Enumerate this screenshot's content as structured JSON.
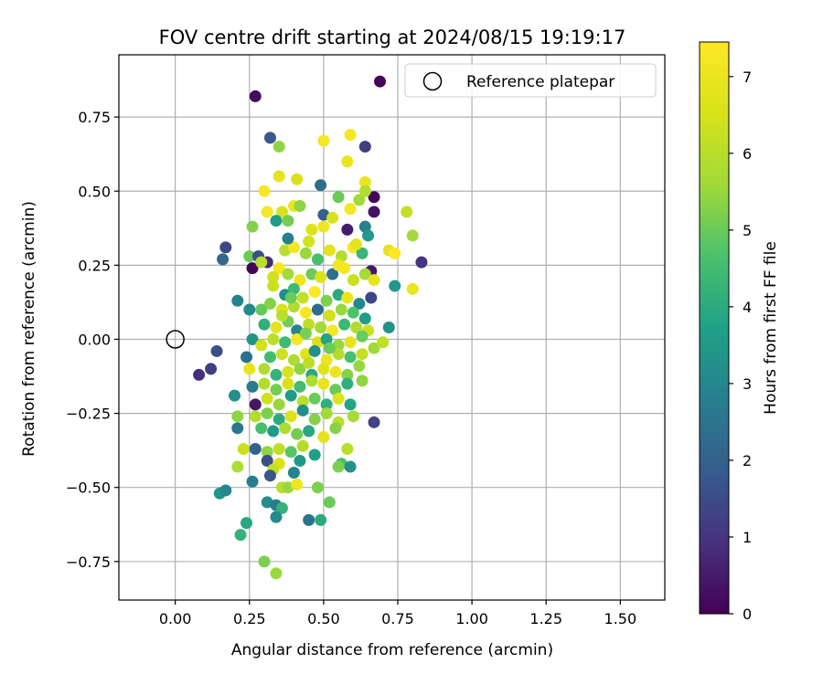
{
  "chart_data": {
    "type": "scatter",
    "title": "FOV centre drift starting at 2024/08/15 19:19:17",
    "xlabel": "Angular distance from reference (arcmin)",
    "ylabel": "Rotation from reference (arcmin)",
    "xlim": [
      -0.19,
      1.65
    ],
    "ylim": [
      -0.88,
      0.96
    ],
    "xticks": [
      0.0,
      0.25,
      0.5,
      0.75,
      1.0,
      1.25,
      1.5
    ],
    "xtick_labels": [
      "0.00",
      "0.25",
      "0.50",
      "0.75",
      "1.00",
      "1.25",
      "1.50"
    ],
    "yticks": [
      -0.75,
      -0.5,
      -0.25,
      0.0,
      0.25,
      0.5,
      0.75
    ],
    "ytick_labels": [
      "−0.75",
      "−0.50",
      "−0.25",
      "0.00",
      "0.25",
      "0.50",
      "0.75"
    ],
    "grid": true,
    "legend_position": "top-right",
    "reference": {
      "label": "Reference platepar",
      "x": 0.0,
      "y": 0.0
    },
    "colorbar": {
      "label": "Hours from first FF file",
      "range": [
        0,
        7.45
      ],
      "ticks": [
        0,
        1,
        2,
        3,
        4,
        5,
        6,
        7
      ],
      "tick_labels": [
        "0",
        "1",
        "2",
        "3",
        "4",
        "5",
        "6",
        "7"
      ],
      "colormap": "viridis"
    },
    "points": [
      [
        0.27,
        0.82,
        0.2
      ],
      [
        0.69,
        0.87,
        0.1
      ],
      [
        0.32,
        0.68,
        1.8
      ],
      [
        0.35,
        0.65,
        5.4
      ],
      [
        0.64,
        0.65,
        1.2
      ],
      [
        0.5,
        0.67,
        7.2
      ],
      [
        0.59,
        0.69,
        7.3
      ],
      [
        0.58,
        0.6,
        7.0
      ],
      [
        0.35,
        0.55,
        6.9
      ],
      [
        0.41,
        0.54,
        6.6
      ],
      [
        0.49,
        0.52,
        2.3
      ],
      [
        0.64,
        0.53,
        7.0
      ],
      [
        0.3,
        0.5,
        7.3
      ],
      [
        0.55,
        0.48,
        5.0
      ],
      [
        0.62,
        0.47,
        5.6
      ],
      [
        0.67,
        0.48,
        0.1
      ],
      [
        0.64,
        0.5,
        5.9
      ],
      [
        0.31,
        0.43,
        7.2
      ],
      [
        0.36,
        0.43,
        6.6
      ],
      [
        0.4,
        0.45,
        7.0
      ],
      [
        0.42,
        0.45,
        5.4
      ],
      [
        0.5,
        0.42,
        2.0
      ],
      [
        0.53,
        0.41,
        6.5
      ],
      [
        0.59,
        0.44,
        7.2
      ],
      [
        0.67,
        0.43,
        0.3
      ],
      [
        0.78,
        0.43,
        6.2
      ],
      [
        0.26,
        0.38,
        5.3
      ],
      [
        0.34,
        0.4,
        3.6
      ],
      [
        0.38,
        0.4,
        5.1
      ],
      [
        0.46,
        0.37,
        6.7
      ],
      [
        0.5,
        0.38,
        7.1
      ],
      [
        0.58,
        0.37,
        0.5
      ],
      [
        0.64,
        0.38,
        2.8
      ],
      [
        0.65,
        0.35,
        3.5
      ],
      [
        0.8,
        0.35,
        5.6
      ],
      [
        0.17,
        0.31,
        1.4
      ],
      [
        0.25,
        0.28,
        5.0
      ],
      [
        0.28,
        0.28,
        1.6
      ],
      [
        0.31,
        0.26,
        0.8
      ],
      [
        0.35,
        0.24,
        7.3
      ],
      [
        0.37,
        0.3,
        6.0
      ],
      [
        0.4,
        0.31,
        7.2
      ],
      [
        0.44,
        0.29,
        5.5
      ],
      [
        0.48,
        0.27,
        4.6
      ],
      [
        0.52,
        0.3,
        6.8
      ],
      [
        0.56,
        0.28,
        5.9
      ],
      [
        0.6,
        0.31,
        7.4
      ],
      [
        0.63,
        0.29,
        4.3
      ],
      [
        0.66,
        0.23,
        0.4
      ],
      [
        0.72,
        0.3,
        6.9
      ],
      [
        0.74,
        0.29,
        7.4
      ],
      [
        0.83,
        0.26,
        1.0
      ],
      [
        0.16,
        0.27,
        2.2
      ],
      [
        0.26,
        0.24,
        0.1
      ],
      [
        0.29,
        0.26,
        6.0
      ],
      [
        0.33,
        0.21,
        6.4
      ],
      [
        0.38,
        0.22,
        5.6
      ],
      [
        0.42,
        0.2,
        7.1
      ],
      [
        0.46,
        0.22,
        5.0
      ],
      [
        0.49,
        0.21,
        6.6
      ],
      [
        0.53,
        0.22,
        2.4
      ],
      [
        0.57,
        0.24,
        7.3
      ],
      [
        0.6,
        0.2,
        6.3
      ],
      [
        0.64,
        0.22,
        5.7
      ],
      [
        0.67,
        0.2,
        6.9
      ],
      [
        0.74,
        0.18,
        3.5
      ],
      [
        0.8,
        0.17,
        7.0
      ],
      [
        0.33,
        0.18,
        6.3
      ],
      [
        0.37,
        0.15,
        3.2
      ],
      [
        0.4,
        0.17,
        4.4
      ],
      [
        0.43,
        0.14,
        6.2
      ],
      [
        0.47,
        0.16,
        7.4
      ],
      [
        0.51,
        0.13,
        5.2
      ],
      [
        0.55,
        0.15,
        4.0
      ],
      [
        0.58,
        0.14,
        7.0
      ],
      [
        0.62,
        0.12,
        3.0
      ],
      [
        0.66,
        0.14,
        1.4
      ],
      [
        0.21,
        0.13,
        2.9
      ],
      [
        0.25,
        0.1,
        3.1
      ],
      [
        0.29,
        0.1,
        4.9
      ],
      [
        0.32,
        0.12,
        5.3
      ],
      [
        0.36,
        0.1,
        6.6
      ],
      [
        0.4,
        0.11,
        5.9
      ],
      [
        0.44,
        0.09,
        7.3
      ],
      [
        0.48,
        0.1,
        2.2
      ],
      [
        0.52,
        0.08,
        6.4
      ],
      [
        0.56,
        0.1,
        5.5
      ],
      [
        0.6,
        0.09,
        4.7
      ],
      [
        0.64,
        0.07,
        3.6
      ],
      [
        0.3,
        0.05,
        4.1
      ],
      [
        0.34,
        0.04,
        6.8
      ],
      [
        0.38,
        0.06,
        5.1
      ],
      [
        0.41,
        0.03,
        3.0
      ],
      [
        0.45,
        0.05,
        6.1
      ],
      [
        0.49,
        0.04,
        5.6
      ],
      [
        0.53,
        0.03,
        7.3
      ],
      [
        0.57,
        0.05,
        4.4
      ],
      [
        0.61,
        0.04,
        5.9
      ],
      [
        0.65,
        0.03,
        6.3
      ],
      [
        0.72,
        0.04,
        3.3
      ],
      [
        0.26,
        0.0,
        3.4
      ],
      [
        0.29,
        -0.02,
        6.4
      ],
      [
        0.33,
        0.0,
        6.0
      ],
      [
        0.37,
        -0.01,
        4.4
      ],
      [
        0.41,
        0.0,
        7.2
      ],
      [
        0.44,
        0.02,
        5.2
      ],
      [
        0.48,
        -0.01,
        6.6
      ],
      [
        0.51,
        0.0,
        3.8
      ],
      [
        0.55,
        -0.02,
        5.5
      ],
      [
        0.59,
        -0.01,
        6.9
      ],
      [
        0.63,
        0.01,
        5.0
      ],
      [
        0.67,
        -0.03,
        5.6
      ],
      [
        0.7,
        -0.01,
        6.1
      ],
      [
        0.14,
        -0.04,
        1.6
      ],
      [
        0.24,
        -0.06,
        2.4
      ],
      [
        0.32,
        -0.06,
        4.5
      ],
      [
        0.36,
        -0.05,
        6.3
      ],
      [
        0.4,
        -0.07,
        5.8
      ],
      [
        0.44,
        -0.05,
        6.7
      ],
      [
        0.47,
        -0.04,
        3.3
      ],
      [
        0.51,
        -0.07,
        7.0
      ],
      [
        0.55,
        -0.05,
        5.9
      ],
      [
        0.59,
        -0.06,
        4.6
      ],
      [
        0.63,
        -0.05,
        6.2
      ],
      [
        0.08,
        -0.12,
        0.9
      ],
      [
        0.12,
        -0.1,
        1.2
      ],
      [
        0.25,
        -0.1,
        6.9
      ],
      [
        0.3,
        -0.1,
        5.8
      ],
      [
        0.34,
        -0.12,
        4.2
      ],
      [
        0.38,
        -0.11,
        6.5
      ],
      [
        0.42,
        -0.1,
        5.4
      ],
      [
        0.46,
        -0.12,
        3.9
      ],
      [
        0.5,
        -0.1,
        6.7
      ],
      [
        0.54,
        -0.11,
        7.0
      ],
      [
        0.58,
        -0.12,
        5.3
      ],
      [
        0.62,
        -0.09,
        5.5
      ],
      [
        0.26,
        -0.16,
        2.7
      ],
      [
        0.3,
        -0.15,
        5.9
      ],
      [
        0.34,
        -0.17,
        5.1
      ],
      [
        0.38,
        -0.15,
        6.6
      ],
      [
        0.42,
        -0.16,
        4.5
      ],
      [
        0.46,
        -0.14,
        5.8
      ],
      [
        0.5,
        -0.15,
        6.9
      ],
      [
        0.54,
        -0.17,
        5.0
      ],
      [
        0.58,
        -0.15,
        4.1
      ],
      [
        0.63,
        -0.14,
        5.4
      ],
      [
        0.2,
        -0.19,
        3.3
      ],
      [
        0.27,
        -0.22,
        0.4
      ],
      [
        0.31,
        -0.2,
        6.4
      ],
      [
        0.35,
        -0.22,
        5.5
      ],
      [
        0.39,
        -0.19,
        3.6
      ],
      [
        0.43,
        -0.21,
        6.0
      ],
      [
        0.47,
        -0.2,
        5.0
      ],
      [
        0.51,
        -0.22,
        4.1
      ],
      [
        0.55,
        -0.2,
        6.7
      ],
      [
        0.59,
        -0.22,
        3.8
      ],
      [
        0.21,
        -0.26,
        5.4
      ],
      [
        0.27,
        -0.26,
        5.9
      ],
      [
        0.31,
        -0.25,
        5.2
      ],
      [
        0.35,
        -0.27,
        4.0
      ],
      [
        0.39,
        -0.26,
        6.6
      ],
      [
        0.43,
        -0.24,
        3.2
      ],
      [
        0.47,
        -0.27,
        5.3
      ],
      [
        0.51,
        -0.25,
        5.6
      ],
      [
        0.55,
        -0.28,
        6.1
      ],
      [
        0.6,
        -0.26,
        5.7
      ],
      [
        0.67,
        -0.28,
        1.3
      ],
      [
        0.21,
        -0.3,
        2.6
      ],
      [
        0.29,
        -0.3,
        4.6
      ],
      [
        0.33,
        -0.31,
        3.5
      ],
      [
        0.37,
        -0.3,
        5.8
      ],
      [
        0.41,
        -0.32,
        5.1
      ],
      [
        0.45,
        -0.31,
        3.9
      ],
      [
        0.5,
        -0.33,
        6.8
      ],
      [
        0.54,
        -0.3,
        5.3
      ],
      [
        0.23,
        -0.37,
        6.3
      ],
      [
        0.27,
        -0.37,
        2.0
      ],
      [
        0.31,
        -0.38,
        5.4
      ],
      [
        0.35,
        -0.37,
        6.1
      ],
      [
        0.39,
        -0.38,
        4.8
      ],
      [
        0.43,
        -0.36,
        5.9
      ],
      [
        0.47,
        -0.39,
        3.7
      ],
      [
        0.58,
        -0.37,
        6.0
      ],
      [
        0.31,
        -0.41,
        1.5
      ],
      [
        0.35,
        -0.42,
        6.6
      ],
      [
        0.42,
        -0.41,
        3.5
      ],
      [
        0.56,
        -0.42,
        4.6
      ],
      [
        0.21,
        -0.43,
        5.8
      ],
      [
        0.33,
        -0.44,
        6.2
      ],
      [
        0.4,
        -0.45,
        2.9
      ],
      [
        0.55,
        -0.43,
        5.2
      ],
      [
        0.59,
        -0.43,
        3.3
      ],
      [
        0.26,
        -0.48,
        2.8
      ],
      [
        0.32,
        -0.46,
        1.7
      ],
      [
        0.36,
        -0.5,
        6.0
      ],
      [
        0.38,
        -0.5,
        5.5
      ],
      [
        0.41,
        -0.49,
        7.1
      ],
      [
        0.48,
        -0.5,
        5.2
      ],
      [
        0.15,
        -0.52,
        3.4
      ],
      [
        0.17,
        -0.51,
        3.0
      ],
      [
        0.31,
        -0.55,
        3.2
      ],
      [
        0.34,
        -0.56,
        2.7
      ],
      [
        0.36,
        -0.57,
        4.2
      ],
      [
        0.52,
        -0.55,
        5.0
      ],
      [
        0.24,
        -0.62,
        3.9
      ],
      [
        0.34,
        -0.6,
        3.1
      ],
      [
        0.45,
        -0.61,
        2.5
      ],
      [
        0.49,
        -0.61,
        4.0
      ],
      [
        0.22,
        -0.66,
        4.2
      ],
      [
        0.3,
        -0.75,
        5.2
      ],
      [
        0.34,
        -0.79,
        5.5
      ],
      [
        0.38,
        0.34,
        2.8
      ],
      [
        0.45,
        0.33,
        6.4
      ],
      [
        0.55,
        0.25,
        7.2
      ],
      [
        0.61,
        0.32,
        6.8
      ],
      [
        0.36,
        0.08,
        6.0
      ],
      [
        0.52,
        -0.03,
        5.0
      ],
      [
        0.45,
        -0.08,
        6.1
      ],
      [
        0.39,
        0.14,
        5.0
      ]
    ]
  }
}
